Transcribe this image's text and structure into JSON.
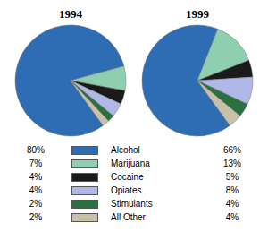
{
  "chart_data": [
    {
      "type": "pie",
      "title": "1994",
      "categories": [
        "Alcohol",
        "Marijuana",
        "Cocaine",
        "Opiates",
        "Stimulants",
        "All Other"
      ],
      "values": [
        80,
        7,
        4,
        4,
        2,
        2
      ],
      "value_labels": [
        "80%",
        "7%",
        "4%",
        "4%",
        "2%",
        "2%"
      ],
      "colors": [
        "#2e6db4",
        "#8ecfb0",
        "#1a1a1a",
        "#b0b8e8",
        "#2a7040",
        "#c8c0a8"
      ],
      "legend": "bottom"
    },
    {
      "type": "pie",
      "title": "1999",
      "categories": [
        "Alcohol",
        "Marijuana",
        "Cocaine",
        "Opiates",
        "Stimulants",
        "All Other"
      ],
      "values": [
        66,
        13,
        5,
        8,
        4,
        4
      ],
      "value_labels": [
        "66%",
        "13%",
        "5%",
        "8%",
        "4%",
        "4%"
      ],
      "colors": [
        "#2e6db4",
        "#8ecfb0",
        "#1a1a1a",
        "#b0b8e8",
        "#2a7040",
        "#c8c0a8"
      ],
      "legend": "bottom"
    }
  ]
}
